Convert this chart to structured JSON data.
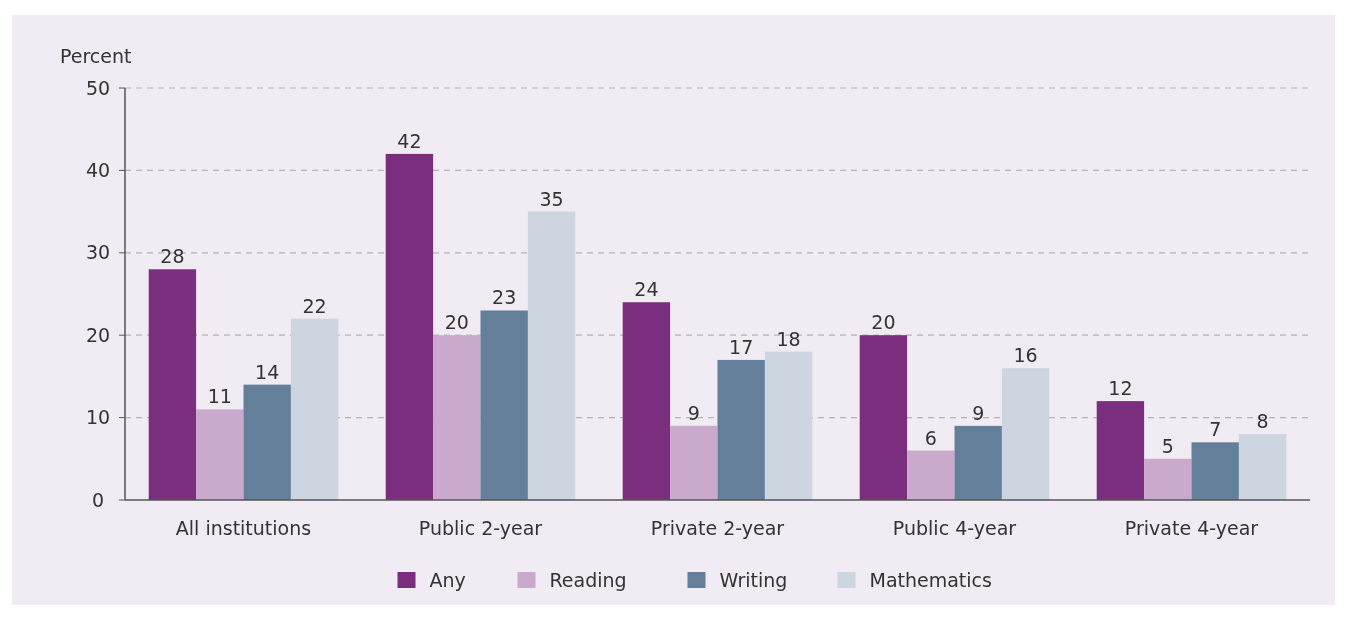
{
  "chart_data": {
    "type": "bar",
    "ylabel": "Percent",
    "categories": [
      "All institutions",
      "Public 2-year",
      "Private 2-year",
      "Public 4-year",
      "Private 4-year"
    ],
    "series": [
      {
        "name": "Any",
        "color": "#7b2d7e",
        "values": [
          28,
          42,
          24,
          20,
          12
        ]
      },
      {
        "name": "Reading",
        "color": "#c9a9cc",
        "values": [
          11,
          20,
          9,
          6,
          5
        ]
      },
      {
        "name": "Writing",
        "color": "#647f99",
        "values": [
          14,
          23,
          17,
          9,
          7
        ]
      },
      {
        "name": "Mathematics",
        "color": "#cdd6e0",
        "values": [
          22,
          35,
          18,
          16,
          8
        ]
      }
    ],
    "ylim": [
      0,
      50
    ],
    "yticks": [
      0,
      10,
      20,
      30,
      40,
      50
    ],
    "grid": "y",
    "legend": "bottom",
    "data_labels": true
  }
}
